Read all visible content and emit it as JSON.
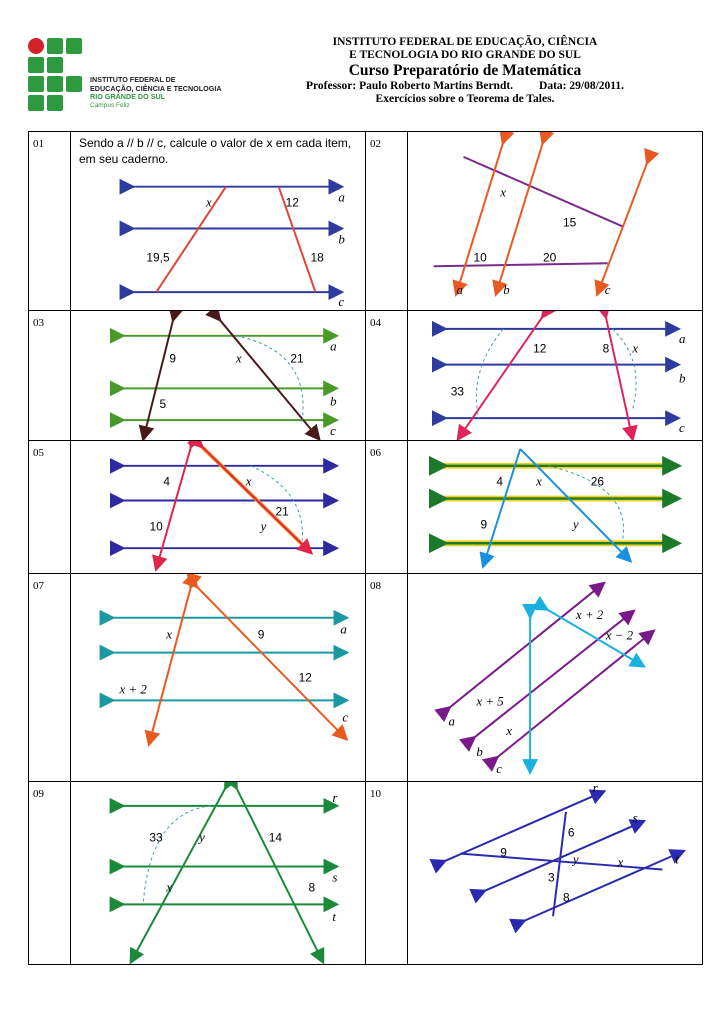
{
  "header": {
    "institute_line1": "INSTITUTO FEDERAL DE EDUCAÇÃO, CIÊNCIA",
    "institute_line2": "E TECNOLOGIA DO RIO GRANDE DO SUL",
    "course": "Curso Preparatório de Matemática",
    "professor": "Professor: Paulo Roberto Martins Berndt.",
    "date": "Data: 29/08/2011.",
    "subtitle": "Exercícios sobre o Teorema de Tales."
  },
  "logo": {
    "line1": "INSTITUTO FEDERAL DE",
    "line2": "EDUCAÇÃO, CIÊNCIA E TECNOLOGIA",
    "line3": "RIO GRANDE DO SUL",
    "line4": "Campus Feliz"
  },
  "colors": {
    "green": "#2e9a3f",
    "red": "#d2232a"
  },
  "exercises": [
    {
      "number": "01",
      "instruction": "Sendo a // b // c, calcule o valor de x em cada item, em seu caderno.",
      "labels": [
        "x",
        "12",
        "19,5",
        "18",
        "a",
        "b",
        "c"
      ]
    },
    {
      "number": "02",
      "labels": [
        "x",
        "15",
        "10",
        "20",
        "a",
        "b",
        "c"
      ]
    },
    {
      "number": "03",
      "labels": [
        "9",
        "x",
        "21",
        "5",
        "a",
        "b",
        "c"
      ]
    },
    {
      "number": "04",
      "labels": [
        "12",
        "8",
        "x",
        "33",
        "a",
        "b",
        "c"
      ]
    },
    {
      "number": "05",
      "labels": [
        "4",
        "x",
        "21",
        "10",
        "y"
      ]
    },
    {
      "number": "06",
      "labels": [
        "4",
        "x",
        "26",
        "9",
        "y"
      ]
    },
    {
      "number": "07",
      "labels": [
        "x",
        "9",
        "a",
        "x + 2",
        "12",
        "c"
      ]
    },
    {
      "number": "08",
      "labels": [
        "x + 2",
        "x − 2",
        "x + 5",
        "x",
        "a",
        "b",
        "c"
      ]
    },
    {
      "number": "09",
      "labels": [
        "33",
        "y",
        "14",
        "x",
        "8",
        "r",
        "s",
        "t"
      ]
    },
    {
      "number": "10",
      "labels": [
        "r",
        "s",
        "6",
        "9",
        "y",
        "x",
        "t",
        "3",
        "8"
      ]
    }
  ]
}
